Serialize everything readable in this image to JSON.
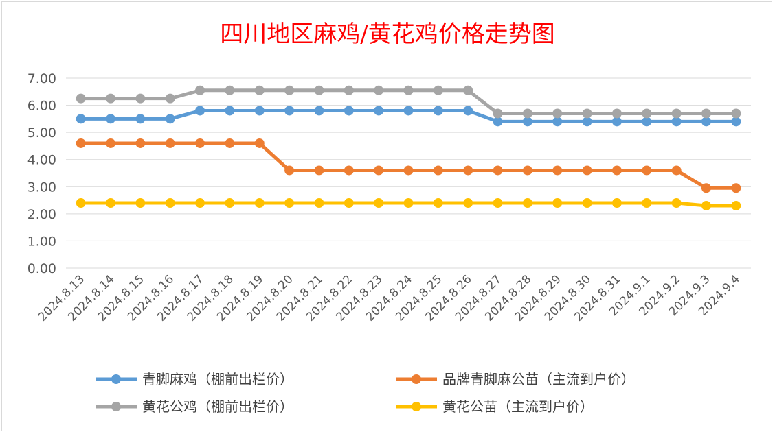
{
  "chart_data": {
    "type": "line",
    "title": "四川地区麻鸡/黄花鸡价格走势图",
    "xlabel": "",
    "ylabel": "",
    "ylim": [
      0,
      7
    ],
    "yticks": [
      "0.00",
      "1.00",
      "2.00",
      "3.00",
      "4.00",
      "5.00",
      "6.00",
      "7.00"
    ],
    "grid": true,
    "legend_placement": "bottom",
    "categories": [
      "2024.8.13",
      "2024.8.14",
      "2024.8.15",
      "2024.8.16",
      "2024.8.17",
      "2024.8.18",
      "2024.8.19",
      "2024.8.20",
      "2024.8.21",
      "2024.8.22",
      "2024.8.23",
      "2024.8.24",
      "2024.8.25",
      "2024.8.26",
      "2024.8.27",
      "2024.8.28",
      "2024.8.29",
      "2024.8.30",
      "2024.8.31",
      "2024.9.1",
      "2024.9.2",
      "2024.9.3",
      "2024.9.4"
    ],
    "series": [
      {
        "name": "青脚麻鸡（棚前出栏价）",
        "color": "#5b9bd5",
        "values": [
          5.5,
          5.5,
          5.5,
          5.5,
          5.8,
          5.8,
          5.8,
          5.8,
          5.8,
          5.8,
          5.8,
          5.8,
          5.8,
          5.8,
          5.4,
          5.4,
          5.4,
          5.4,
          5.4,
          5.4,
          5.4,
          5.4,
          5.4
        ]
      },
      {
        "name": "品牌青脚麻公苗（主流到户价）",
        "color": "#ed7d31",
        "values": [
          4.6,
          4.6,
          4.6,
          4.6,
          4.6,
          4.6,
          4.6,
          3.6,
          3.6,
          3.6,
          3.6,
          3.6,
          3.6,
          3.6,
          3.6,
          3.6,
          3.6,
          3.6,
          3.6,
          3.6,
          3.6,
          2.95,
          2.95
        ]
      },
      {
        "name": "黄花公鸡（棚前出栏价）",
        "color": "#a5a5a5",
        "values": [
          6.25,
          6.25,
          6.25,
          6.25,
          6.55,
          6.55,
          6.55,
          6.55,
          6.55,
          6.55,
          6.55,
          6.55,
          6.55,
          6.55,
          5.7,
          5.7,
          5.7,
          5.7,
          5.7,
          5.7,
          5.7,
          5.7,
          5.7
        ]
      },
      {
        "name": "黄花公苗（主流到户价）",
        "color": "#ffc000",
        "values": [
          2.4,
          2.4,
          2.4,
          2.4,
          2.4,
          2.4,
          2.4,
          2.4,
          2.4,
          2.4,
          2.4,
          2.4,
          2.4,
          2.4,
          2.4,
          2.4,
          2.4,
          2.4,
          2.4,
          2.4,
          2.4,
          2.3,
          2.3
        ]
      }
    ]
  }
}
